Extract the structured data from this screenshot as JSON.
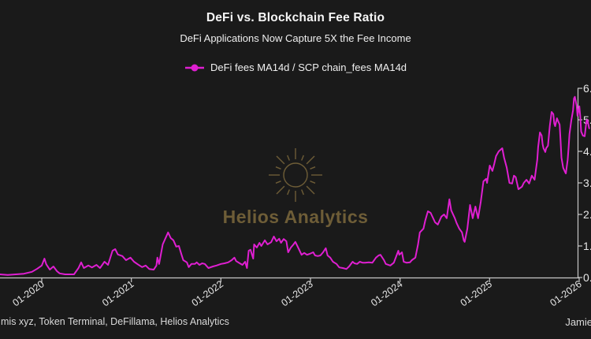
{
  "watermark": {
    "text": "Helios Analytics",
    "color": "#6e5d37"
  },
  "footer": {
    "sources": "mis xyz, Token Terminal, DeFillama, Helios Analytics",
    "credit": "Jamie"
  },
  "chart_data": {
    "type": "line",
    "title": "DeFi vs. Blockchain Fee Ratio",
    "subtitle": "DeFi Applications Now Capture 5X the Fee Income",
    "legend_position": "top-center",
    "grid": false,
    "background": "#1a1a1a",
    "line_color": "#df1fd1",
    "x_axis": {
      "tick_labels": [
        "01-2020",
        "01-2021",
        "01-2022",
        "01-2023",
        "01-2024",
        "01-2025",
        "01-2026"
      ],
      "tick_years": [
        2020,
        2021,
        2022,
        2023,
        2024,
        2025,
        2026
      ],
      "range_years": [
        2019.53,
        2026.13
      ],
      "rotation_deg": -36
    },
    "y_axis": {
      "side": "right",
      "tick_labels": [
        "0.",
        "1.",
        "2.",
        "3.",
        "4.",
        "5.",
        "6."
      ],
      "tick_values": [
        0,
        1,
        2,
        3,
        4,
        5,
        6
      ],
      "range": [
        0,
        6.5
      ]
    },
    "series": [
      {
        "name": "DeFi fees MA14d / SCP chain_fees MA14d",
        "color": "#df1fd1",
        "x": [
          2019.53,
          2019.62,
          2019.71,
          2019.8,
          2019.89,
          2019.95,
          2020.0,
          2020.03,
          2020.05,
          2020.09,
          2020.13,
          2020.17,
          2020.2,
          2020.26,
          2020.31,
          2020.36,
          2020.41,
          2020.44,
          2020.47,
          2020.52,
          2020.56,
          2020.61,
          2020.65,
          2020.7,
          2020.74,
          2020.79,
          2020.82,
          2020.85,
          2020.9,
          2020.94,
          2020.99,
          2021.03,
          2021.07,
          2021.12,
          2021.16,
          2021.2,
          2021.25,
          2021.28,
          2021.29,
          2021.31,
          2021.35,
          2021.41,
          2021.44,
          2021.47,
          2021.5,
          2021.53,
          2021.56,
          2021.58,
          2021.62,
          2021.64,
          2021.67,
          2021.71,
          2021.73,
          2021.76,
          2021.79,
          2021.82,
          2021.86,
          2021.91,
          2021.95,
          2022.0,
          2022.04,
          2022.08,
          2022.12,
          2022.15,
          2022.17,
          2022.21,
          2022.24,
          2022.27,
          2022.29,
          2022.31,
          2022.33,
          2022.36,
          2022.37,
          2022.4,
          2022.43,
          2022.45,
          2022.49,
          2022.52,
          2022.56,
          2022.59,
          2022.62,
          2022.65,
          2022.67,
          2022.7,
          2022.73,
          2022.75,
          2022.78,
          2022.81,
          2022.83,
          2022.87,
          2022.9,
          2022.93,
          2022.96,
          2022.99,
          2023.03,
          2023.05,
          2023.08,
          2023.11,
          2023.14,
          2023.17,
          2023.19,
          2023.22,
          2023.25,
          2023.29,
          2023.32,
          2023.36,
          2023.4,
          2023.43,
          2023.47,
          2023.49,
          2023.52,
          2023.55,
          2023.58,
          2023.61,
          2023.65,
          2023.69,
          2023.73,
          2023.76,
          2023.78,
          2023.82,
          2023.84,
          2023.89,
          2023.93,
          2023.98,
          2023.99,
          2024.02,
          2024.04,
          2024.07,
          2024.11,
          2024.13,
          2024.17,
          2024.2,
          2024.22,
          2024.26,
          2024.28,
          2024.31,
          2024.34,
          2024.39,
          2024.42,
          2024.46,
          2024.49,
          2024.52,
          2024.55,
          2024.57,
          2024.61,
          2024.63,
          2024.66,
          2024.69,
          2024.71,
          2024.72,
          2024.75,
          2024.78,
          2024.81,
          2024.84,
          2024.87,
          2024.9,
          2024.93,
          2024.96,
          2024.97,
          2025.0,
          2025.03,
          2025.05,
          2025.07,
          2025.1,
          2025.14,
          2025.16,
          2025.19,
          2025.22,
          2025.25,
          2025.27,
          2025.29,
          2025.32,
          2025.36,
          2025.38,
          2025.41,
          2025.44,
          2025.47,
          2025.5,
          2025.53,
          2025.54,
          2025.56,
          2025.58,
          2025.59,
          2025.6,
          2025.62,
          2025.63,
          2025.65,
          2025.67,
          2025.69,
          2025.71,
          2025.72,
          2025.73,
          2025.75,
          2025.76,
          2025.78,
          2025.79,
          2025.8,
          2025.82,
          2025.84,
          2025.85,
          2025.87,
          2025.88,
          2025.89,
          2025.91,
          2025.93,
          2025.94,
          2025.95,
          2025.97,
          2025.98,
          2026.0,
          2026.01,
          2026.02,
          2026.04,
          2026.06,
          2026.08,
          2026.09,
          2026.11
        ],
        "values": [
          0.1,
          0.08,
          0.1,
          0.12,
          0.18,
          0.28,
          0.38,
          0.6,
          0.42,
          0.25,
          0.35,
          0.2,
          0.13,
          0.1,
          0.1,
          0.1,
          0.3,
          0.48,
          0.3,
          0.38,
          0.32,
          0.4,
          0.3,
          0.5,
          0.4,
          0.85,
          0.9,
          0.73,
          0.68,
          0.55,
          0.63,
          0.5,
          0.42,
          0.33,
          0.38,
          0.27,
          0.25,
          0.38,
          0.63,
          0.43,
          1.05,
          1.43,
          1.25,
          1.18,
          0.98,
          1.0,
          0.72,
          0.55,
          0.48,
          0.33,
          0.43,
          0.43,
          0.48,
          0.4,
          0.45,
          0.43,
          0.3,
          0.35,
          0.38,
          0.43,
          0.45,
          0.48,
          0.55,
          0.63,
          0.52,
          0.45,
          0.4,
          0.5,
          0.3,
          0.85,
          0.88,
          0.6,
          1.05,
          0.95,
          1.1,
          1.0,
          1.18,
          1.05,
          1.12,
          1.3,
          1.15,
          1.23,
          1.1,
          1.22,
          1.15,
          0.8,
          0.95,
          1.05,
          1.13,
          0.9,
          0.72,
          0.78,
          0.72,
          0.75,
          0.8,
          0.7,
          0.68,
          0.7,
          0.8,
          0.93,
          0.7,
          0.63,
          0.5,
          0.43,
          0.32,
          0.3,
          0.27,
          0.35,
          0.5,
          0.45,
          0.43,
          0.5,
          0.47,
          0.47,
          0.48,
          0.47,
          0.63,
          0.7,
          0.72,
          0.55,
          0.43,
          0.38,
          0.47,
          0.85,
          0.72,
          0.8,
          0.5,
          0.47,
          0.48,
          0.55,
          0.63,
          1.05,
          1.43,
          1.55,
          1.8,
          2.1,
          2.05,
          1.75,
          1.68,
          1.93,
          2.0,
          1.88,
          2.48,
          2.13,
          1.88,
          1.73,
          1.55,
          1.43,
          1.18,
          1.13,
          1.55,
          2.3,
          1.88,
          2.25,
          1.88,
          2.4,
          3.05,
          3.13,
          3.0,
          3.55,
          3.38,
          3.6,
          3.85,
          4.0,
          4.1,
          3.8,
          3.48,
          3.0,
          2.98,
          3.23,
          3.18,
          2.8,
          2.88,
          3.0,
          3.1,
          2.98,
          3.23,
          3.1,
          3.73,
          4.13,
          4.6,
          4.5,
          4.23,
          4.1,
          3.98,
          4.1,
          4.18,
          4.8,
          5.25,
          5.18,
          4.88,
          4.8,
          5.05,
          4.98,
          4.85,
          4.38,
          3.8,
          3.48,
          3.35,
          3.3,
          3.73,
          4.13,
          4.55,
          4.98,
          5.3,
          5.68,
          5.73,
          5.45,
          5.13,
          5.43,
          5.13,
          4.63,
          4.5,
          4.48,
          4.98,
          5.0,
          4.73
        ]
      }
    ]
  }
}
